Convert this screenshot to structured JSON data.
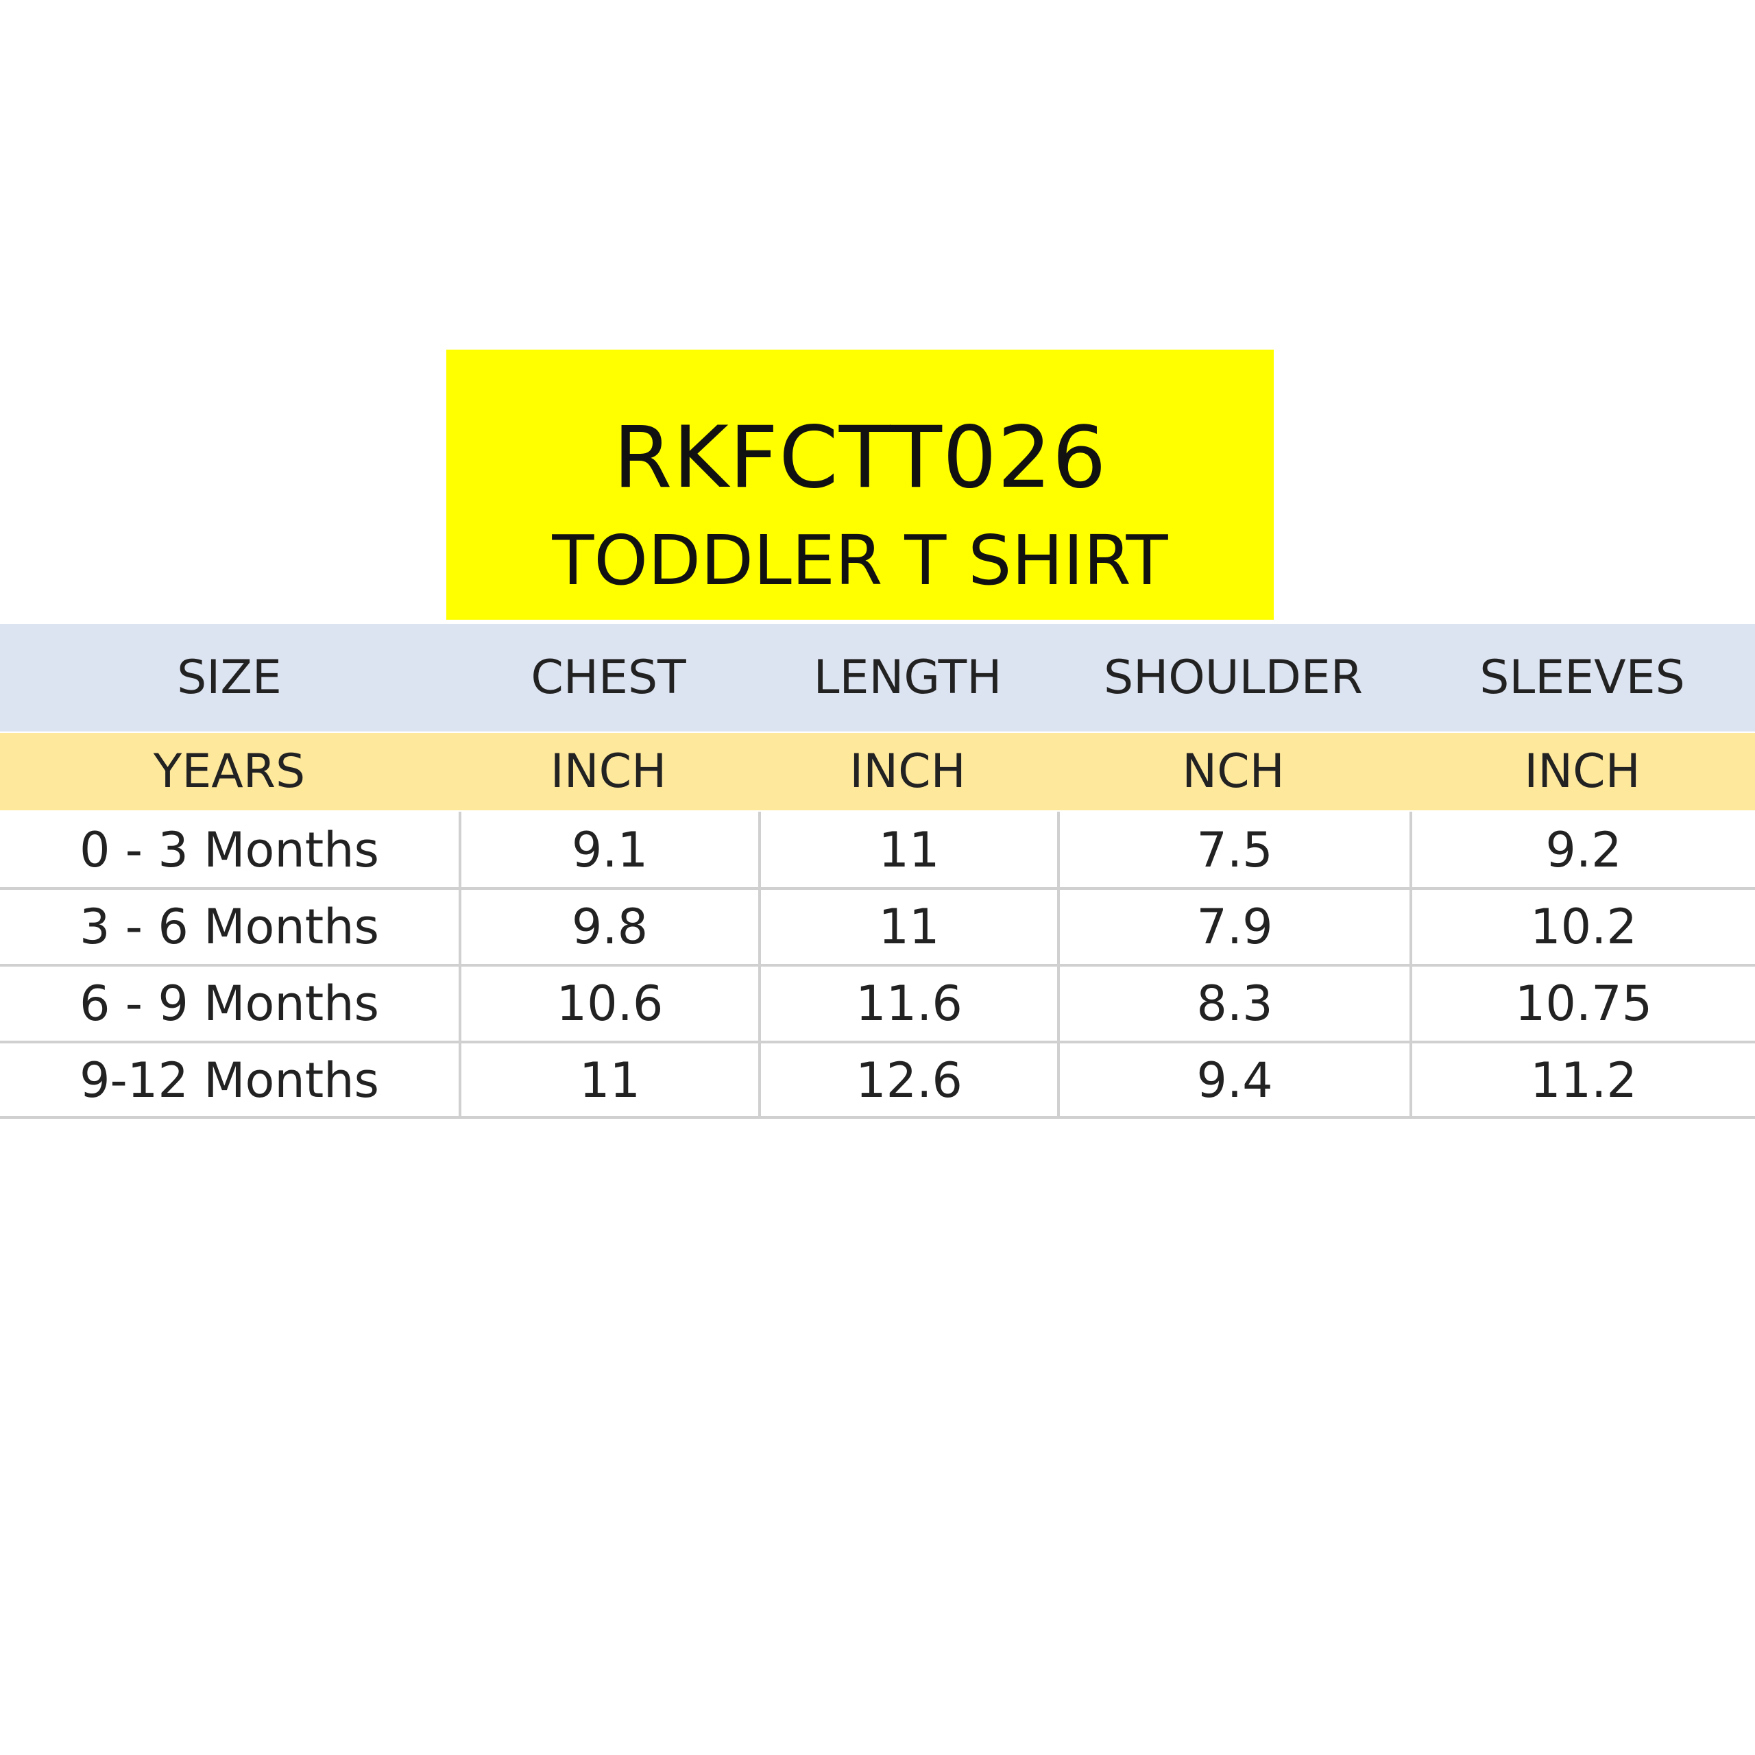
{
  "colors": {
    "title_bg": "#ffff00",
    "header_bg": "#dce3f1",
    "units_bg": "#fee89c",
    "grid_line": "#d0d0d0"
  },
  "title": {
    "code": "RKFCTT026",
    "product": "TODDLER T SHIRT"
  },
  "table": {
    "headers": [
      "SIZE",
      "CHEST",
      "LENGTH",
      "SHOULDER",
      "SLEEVES"
    ],
    "units": [
      "YEARS",
      "INCH",
      "INCH",
      "NCH",
      "INCH"
    ],
    "rows": [
      [
        "0 - 3 Months",
        "9.1",
        "11",
        "7.5",
        "9.2"
      ],
      [
        "3 - 6 Months",
        "9.8",
        "11",
        "7.9",
        "10.2"
      ],
      [
        "6 - 9 Months",
        "10.6",
        "11.6",
        "8.3",
        "10.75"
      ],
      [
        "9-12 Months",
        "11",
        "12.6",
        "9.4",
        "11.2"
      ]
    ]
  }
}
